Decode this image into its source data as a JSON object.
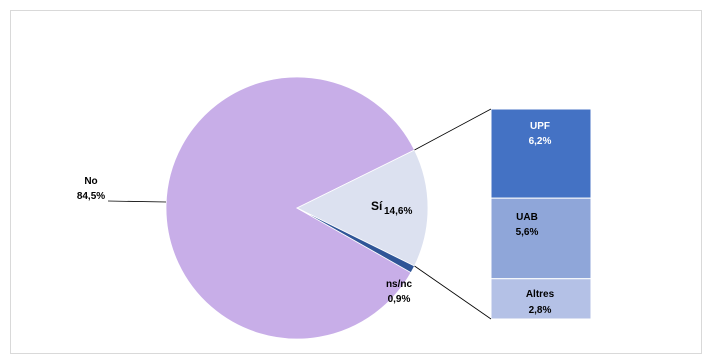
{
  "chart_data": {
    "type": "pie",
    "title": "",
    "slices": [
      {
        "label": "No",
        "value": 84.5,
        "value_label": "84,5%",
        "color": "#c8aee8"
      },
      {
        "label": "Sí",
        "value": 14.6,
        "value_label": "14,6%",
        "color": "#dce1f0"
      },
      {
        "label": "ns/nc",
        "value": 0.9,
        "value_label": "0,9%",
        "color": "#2f5597"
      }
    ],
    "breakdown": {
      "of": "Sí",
      "type": "stacked-bar",
      "segments": [
        {
          "label": "UPF",
          "value": 6.2,
          "value_label": "6,2%",
          "color": "#4472c4"
        },
        {
          "label": "UAB",
          "value": 5.6,
          "value_label": "5,6%",
          "color": "#8fa6d9"
        },
        {
          "label": "Altres",
          "value": 2.8,
          "value_label": "2,8%",
          "color": "#b4c1e6"
        }
      ]
    }
  }
}
